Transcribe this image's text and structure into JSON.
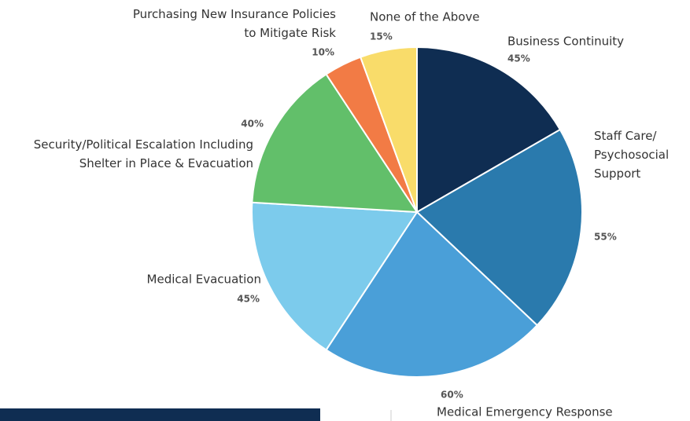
{
  "chart_data": {
    "type": "pie",
    "categories": [
      "Business Continuity",
      "Staff Care/\nPsychosocial\nSupport",
      "Medical Emergency Response",
      "Medical Evacuation",
      "Security/Political Escalation Including\nShelter in Place & Evacuation",
      "Purchasing New Insurance Policies\nto Mitigate Risk",
      "None of the Above"
    ],
    "values": [
      45,
      55,
      60,
      45,
      40,
      10,
      15
    ],
    "value_labels": [
      "45%",
      "55%",
      "60%",
      "45%",
      "40%",
      "10%",
      "15%"
    ],
    "colors": [
      "#0f2d52",
      "#2a7aad",
      "#4a9fd8",
      "#7ccbec",
      "#62bf6a",
      "#f27b45",
      "#f9dc6a"
    ]
  }
}
